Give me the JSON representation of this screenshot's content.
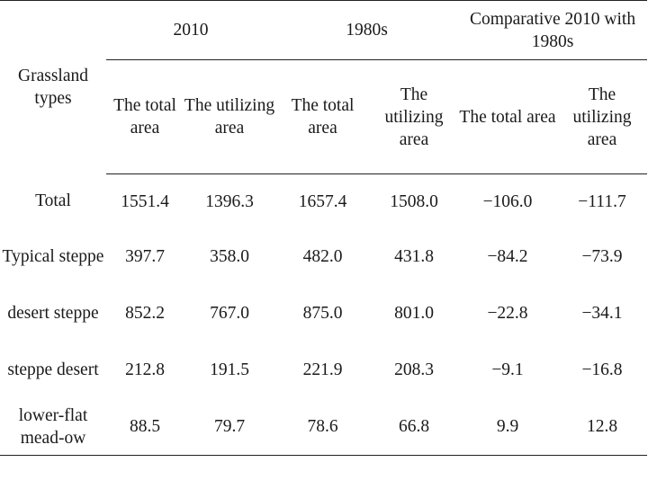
{
  "header": {
    "grassland_types": "Grassland types",
    "groups": [
      "2010",
      "1980s",
      "Comparative 2010 with 1980s"
    ],
    "subheaders": [
      "The total area",
      "The utilizing area",
      "The total area",
      "The utilizing area",
      "The total area",
      "The utilizing area"
    ]
  },
  "rows": [
    {
      "type": "Total",
      "values": [
        "1551.4",
        "1396.3",
        "1657.4",
        "1508.0",
        "−106.0",
        "−111.7"
      ]
    },
    {
      "type": "Typical steppe",
      "values": [
        "397.7",
        "358.0",
        "482.0",
        "431.8",
        "−84.2",
        "−73.9"
      ]
    },
    {
      "type": "desert steppe",
      "values": [
        "852.2",
        "767.0",
        "875.0",
        "801.0",
        "−22.8",
        "−34.1"
      ]
    },
    {
      "type": "steppe desert",
      "values": [
        "212.8",
        "191.5",
        "221.9",
        "208.3",
        "−9.1",
        "−16.8"
      ]
    },
    {
      "type": "lower-flat mead-ow",
      "values": [
        "88.5",
        "79.7",
        "78.6",
        "66.8",
        "9.9",
        "12.8"
      ]
    }
  ]
}
